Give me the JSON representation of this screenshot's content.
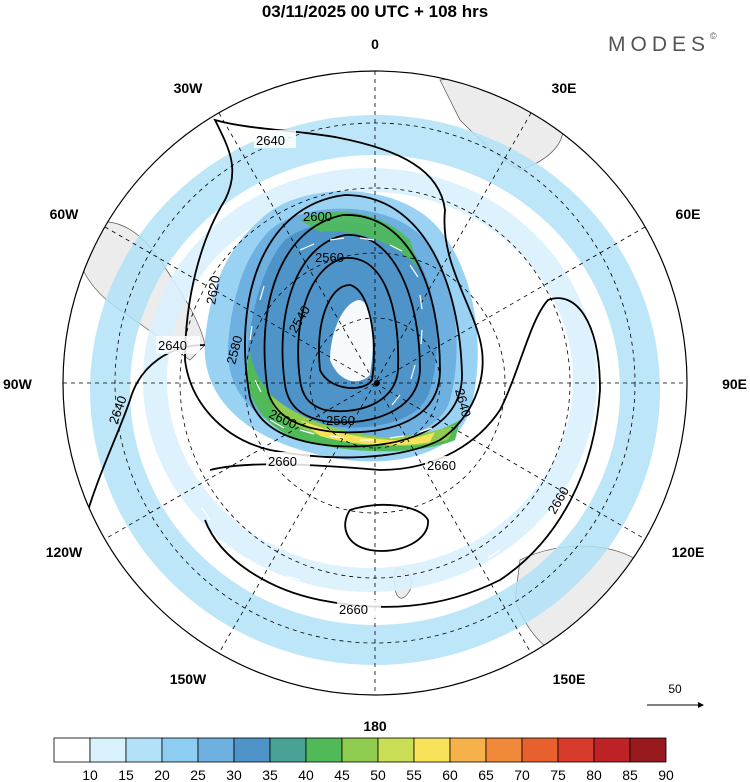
{
  "title": "03/11/2025  00 UTC  + 108 hrs",
  "brand": {
    "name": "MODES",
    "mark": "©"
  },
  "longitude_labels": {
    "top": "0",
    "bottom": "180",
    "left": "90W",
    "right": "90E",
    "w30": "30W",
    "w60": "60W",
    "w120": "120W",
    "w150": "150W",
    "e30": "30E",
    "e60": "60E",
    "e120": "120E",
    "e150": "150E"
  },
  "contour_labels": {
    "c2540": "2540",
    "c2560": "2560",
    "c2580": "2580",
    "c2600": "2600",
    "c2620": "2620",
    "c2640": "2640",
    "c2660": "2660"
  },
  "reference_vector": {
    "value": "50"
  },
  "colorbar": {
    "labels": [
      "10",
      "15",
      "20",
      "25",
      "30",
      "35",
      "40",
      "45",
      "50",
      "55",
      "60",
      "65",
      "70",
      "75",
      "80",
      "85",
      "90"
    ],
    "colors": [
      "#ffffff",
      "#d9f1fd",
      "#b3e2f8",
      "#8ecdf2",
      "#6eb0e0",
      "#4f94c8",
      "#4aa296",
      "#4fba57",
      "#8fcc4f",
      "#c9de55",
      "#f8e25a",
      "#f6b24a",
      "#f1893b",
      "#e9602f",
      "#d83a2b",
      "#bf2226",
      "#981a1e"
    ]
  }
}
